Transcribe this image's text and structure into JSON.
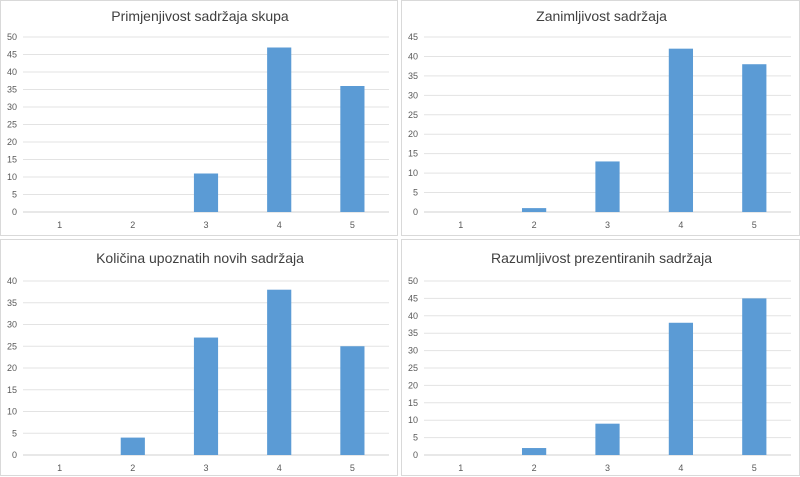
{
  "chart_data": [
    {
      "type": "bar",
      "title": "Primjenjivost sadržaja skupa",
      "categories": [
        "1",
        "2",
        "3",
        "4",
        "5"
      ],
      "values": [
        0,
        0,
        11,
        47,
        36
      ],
      "ylim": [
        0,
        50
      ],
      "yticks": [
        0,
        5,
        10,
        15,
        20,
        25,
        30,
        35,
        40,
        45,
        50
      ],
      "grid": true,
      "color": "#5b9bd5"
    },
    {
      "type": "bar",
      "title": "Zanimljivost sadržaja",
      "categories": [
        "1",
        "2",
        "3",
        "4",
        "5"
      ],
      "values": [
        0,
        1,
        13,
        42,
        38
      ],
      "ylim": [
        0,
        45
      ],
      "yticks": [
        0,
        5,
        10,
        15,
        20,
        25,
        30,
        35,
        40,
        45
      ],
      "grid": true,
      "color": "#5b9bd5"
    },
    {
      "type": "bar",
      "title": "Količina upoznatih novih sadržaja",
      "categories": [
        "1",
        "2",
        "3",
        "4",
        "5"
      ],
      "values": [
        0,
        4,
        27,
        38,
        25
      ],
      "ylim": [
        0,
        40
      ],
      "yticks": [
        0,
        5,
        10,
        15,
        20,
        25,
        30,
        35,
        40
      ],
      "grid": true,
      "color": "#5b9bd5"
    },
    {
      "type": "bar",
      "title": "Razumljivost prezentiranih sadržaja",
      "categories": [
        "1",
        "2",
        "3",
        "4",
        "5"
      ],
      "values": [
        0,
        2,
        9,
        38,
        45
      ],
      "ylim": [
        0,
        50
      ],
      "yticks": [
        0,
        5,
        10,
        15,
        20,
        25,
        30,
        35,
        40,
        45,
        50
      ],
      "grid": true,
      "color": "#5b9bd5"
    }
  ]
}
